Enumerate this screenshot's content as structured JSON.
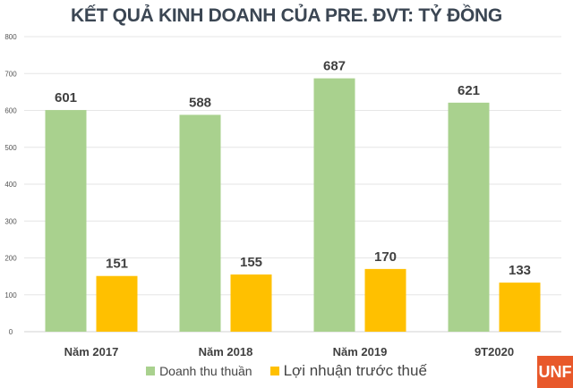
{
  "chart_data": {
    "type": "bar",
    "title": "KẾT QUẢ KINH DOANH CỦA PRE. ĐVT: TỶ ĐỒNG",
    "categories": [
      "Năm 2017",
      "Năm 2018",
      "Năm 2019",
      "9T2020"
    ],
    "series": [
      {
        "name": "Doanh thu thuần",
        "values": [
          601,
          588,
          687,
          621
        ],
        "color": "#a9d18e"
      },
      {
        "name": "Lợi nhuận trước thuế",
        "values": [
          151,
          155,
          170,
          133
        ],
        "color": "#ffc000"
      }
    ],
    "ylim": [
      0,
      800
    ],
    "yticks": [
      0,
      100,
      200,
      300,
      400,
      500,
      600,
      700,
      800
    ],
    "grid": true,
    "legend": "bottom"
  },
  "logo": "UNF"
}
